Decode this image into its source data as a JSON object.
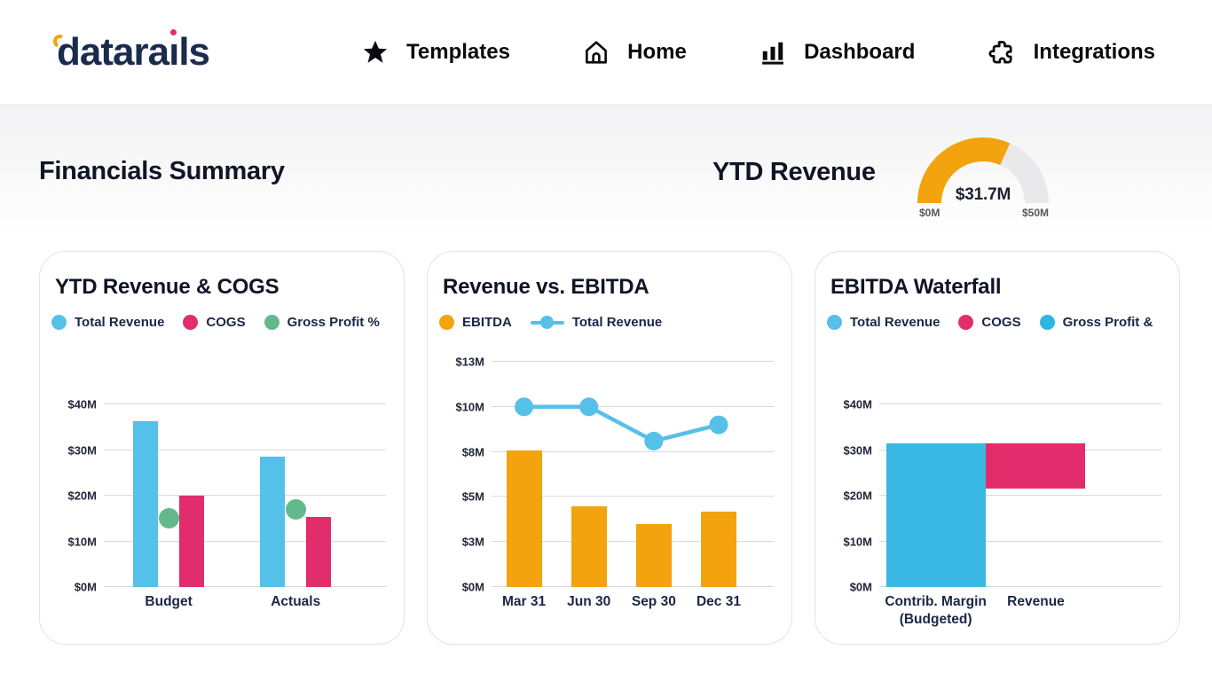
{
  "brand": {
    "logo_text_pre": "datara",
    "logo_text_i": "ı",
    "logo_text_post": "ls",
    "logo_name": "datarails"
  },
  "nav": {
    "items": [
      {
        "label": "Templates",
        "icon": "star-icon"
      },
      {
        "label": "Home",
        "icon": "home-icon"
      },
      {
        "label": "Dashboard",
        "icon": "bar-chart-icon"
      },
      {
        "label": "Integrations",
        "icon": "puzzle-icon"
      }
    ]
  },
  "summary": {
    "title": "Financials Summary",
    "gauge": {
      "title": "YTD Revenue",
      "value": 31.7,
      "value_label": "$31.7M",
      "min": 0,
      "max": 50,
      "min_label": "$0M",
      "max_label": "$50M",
      "fill_color": "#f2a30d",
      "track_color": "#e9e9eb"
    }
  },
  "colors": {
    "blue": "#55c0e8",
    "cyan_blue": "#35b7e3",
    "pink": "#e22d6d",
    "green": "#62b98c",
    "orange": "#f2a30d",
    "navy_text": "#1b2647",
    "gridline": "#d9d9d9"
  },
  "chart_data": "see charts",
  "charts": [
    {
      "id": "ytd-revenue-cogs",
      "title": "YTD Revenue & COGS",
      "type": "bar",
      "legend": [
        {
          "label": "Total Revenue",
          "marker": "dot",
          "color": "#55c0e8"
        },
        {
          "label": "COGS",
          "marker": "dot",
          "color": "#e22d6d"
        },
        {
          "label": "Gross Profit %",
          "marker": "dot",
          "color": "#62b98c"
        }
      ],
      "y_ticks": [
        {
          "label": "$0M",
          "value": 0
        },
        {
          "label": "$10M",
          "value": 10
        },
        {
          "label": "$20M",
          "value": 20
        },
        {
          "label": "$30M",
          "value": 30
        },
        {
          "label": "$40M",
          "value": 40
        }
      ],
      "y_max": 40,
      "ylim": [
        0,
        44
      ],
      "categories": [
        "Budget",
        "Actuals"
      ],
      "series": [
        {
          "name": "Total Revenue",
          "color": "#55c0e8",
          "values": [
            36.3,
            28.5
          ]
        },
        {
          "name": "COGS",
          "color": "#e22d6d",
          "values": [
            20.0,
            15.4
          ]
        }
      ],
      "marker_series": {
        "name": "Gross Profit %",
        "color": "#62b98c",
        "values": [
          15.0,
          16.9
        ]
      }
    },
    {
      "id": "revenue-vs-ebitda",
      "title": "Revenue vs. EBITDA",
      "type": "bar",
      "legend": [
        {
          "label": "EBITDA",
          "marker": "dot",
          "color": "#f2a30d"
        },
        {
          "label": "Total Revenue",
          "marker": "line-dot",
          "color": "#55c0e8"
        }
      ],
      "y_ticks": [
        {
          "label": "$0M",
          "value": 0
        },
        {
          "label": "$3M",
          "value": 2.5
        },
        {
          "label": "$5M",
          "value": 5
        },
        {
          "label": "$8M",
          "value": 7.5
        },
        {
          "label": "$10M",
          "value": 10
        },
        {
          "label": "$13M",
          "value": 12.5
        }
      ],
      "y_max": 12.5,
      "ylim": [
        0,
        12.5
      ],
      "categories": [
        "Mar 31",
        "Jun 30",
        "Sep 30",
        "Dec 31"
      ],
      "bar_series": {
        "name": "EBITDA",
        "color": "#f2a30d",
        "values": [
          7.6,
          4.5,
          3.5,
          4.2
        ]
      },
      "line_series": {
        "name": "Total Revenue",
        "color": "#55c0e8",
        "values": [
          10.0,
          10.0,
          8.1,
          9.0
        ]
      }
    },
    {
      "id": "ebitda-waterfall",
      "title": "EBITDA Waterfall",
      "type": "bar",
      "legend": [
        {
          "label": "Total Revenue",
          "marker": "dot",
          "color": "#55c0e8"
        },
        {
          "label": "COGS",
          "marker": "dot",
          "color": "#e22d6d"
        },
        {
          "label": "Gross Profit &",
          "marker": "dot",
          "color": "#2fb5e1"
        }
      ],
      "y_ticks": [
        {
          "label": "$0M",
          "value": 0
        },
        {
          "label": "$10M",
          "value": 10
        },
        {
          "label": "$20M",
          "value": 20
        },
        {
          "label": "$30M",
          "value": 30
        },
        {
          "label": "$40M",
          "value": 40
        }
      ],
      "y_max": 40,
      "ylim": [
        0,
        44
      ],
      "categories": [
        [
          "Contrib. Margin",
          "(Budgeted)"
        ],
        [
          "Revenue"
        ]
      ],
      "waterfall_bars": [
        {
          "name": "Contrib. Margin (Budgeted)",
          "from": 0,
          "to": 31.5,
          "color": "#3ab8e4"
        },
        {
          "name": "Revenue",
          "from": 21.5,
          "to": 31.5,
          "color": "#e22d6d"
        }
      ]
    }
  ]
}
